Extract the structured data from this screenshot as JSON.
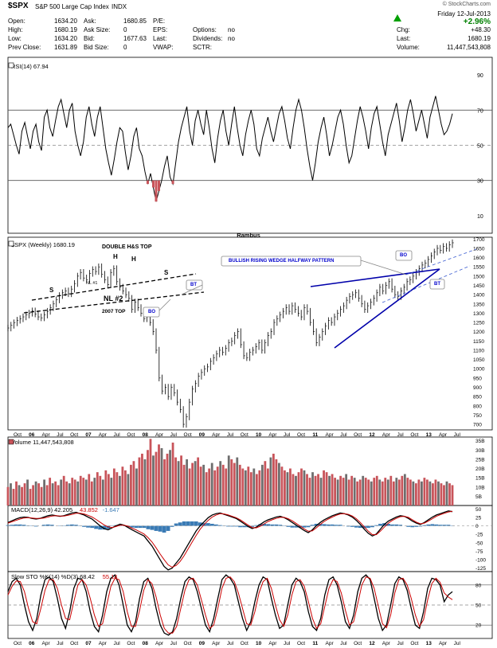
{
  "header": {
    "symbol": "$SPX",
    "name": "S&P 500 Large Cap Index",
    "exchange": "INDX",
    "credit": "© StockCharts.com",
    "date": "Friday 12-Jul-2013",
    "change_pct": "+2.96%",
    "rows": [
      {
        "l1": "Open:",
        "v1": "1634.20",
        "l2": "Ask:",
        "v2": "1680.85",
        "l3": "P/E:",
        "v3": "",
        "l4": "Chg:",
        "v4": "+48.30"
      },
      {
        "l1": "High:",
        "v1": "1680.19",
        "l2": "Ask Size:",
        "v2": "0",
        "l3": "EPS:",
        "v3": "",
        "l3b": "Options:",
        "v3b": "no",
        "l4": "Last:",
        "v4": "1680.19"
      },
      {
        "l1": "Low:",
        "v1": "1634.20",
        "l2": "Bid:",
        "v2": "1677.63",
        "l3": "Last:",
        "v3": "",
        "l3b": "Dividends:",
        "v3b": "no",
        "l4": "Volume:",
        "v4": "11,447,543,808"
      },
      {
        "l1": "Prev Close:",
        "v1": "1631.89",
        "l2": "Bid Size:",
        "v2": "0",
        "l3": "VWAP:",
        "v3": "",
        "l3b": "SCTR:",
        "v3b": "",
        "l4": "",
        "v4": ""
      }
    ],
    "colors": {
      "up": "#008000",
      "triangle": "#00a000"
    }
  },
  "chart_data": [
    {
      "type": "line",
      "panel": "rsi",
      "title": "RSI(14) 67.94",
      "y_ticks": [
        10,
        30,
        50,
        70,
        90
      ],
      "ylim": [
        0,
        100
      ],
      "reference_lines": [
        30,
        50,
        70
      ],
      "values": [
        60,
        62,
        56,
        50,
        45,
        58,
        63,
        55,
        48,
        58,
        62,
        52,
        47,
        66,
        70,
        60,
        55,
        64,
        72,
        76,
        68,
        60,
        70,
        74,
        58,
        50,
        44,
        52,
        66,
        72,
        62,
        55,
        66,
        72,
        60,
        48,
        40,
        33,
        42,
        52,
        60,
        58,
        46,
        36,
        44,
        55,
        60,
        48,
        44,
        35,
        28,
        34,
        26,
        18,
        24,
        30,
        38,
        44,
        32,
        28,
        40,
        52,
        60,
        66,
        72,
        58,
        50,
        64,
        70,
        62,
        56,
        70,
        60,
        48,
        40,
        54,
        64,
        70,
        58,
        50,
        62,
        72,
        60,
        50,
        44,
        56,
        64,
        70,
        62,
        48,
        44,
        54,
        60,
        66,
        58,
        52,
        60,
        68,
        72,
        64,
        54,
        48,
        60,
        70,
        76,
        70,
        60,
        48,
        38,
        30,
        40,
        52,
        60,
        66,
        56,
        44,
        50,
        58,
        66,
        70,
        62,
        50,
        40,
        44,
        54,
        64,
        72,
        66,
        58,
        48,
        60,
        68,
        72,
        62,
        52,
        44,
        56,
        62,
        68,
        74,
        64,
        52,
        60,
        70,
        76,
        68,
        58,
        64,
        70,
        62,
        54,
        66,
        72,
        78,
        70,
        62,
        56,
        58,
        62,
        68
      ]
    },
    {
      "type": "ohlc",
      "panel": "price",
      "title": "$SPX (Weekly) 1680.19",
      "caption_top": "Rambus",
      "y_ticks": [
        700,
        750,
        800,
        850,
        900,
        950,
        1000,
        1050,
        1100,
        1150,
        1200,
        1250,
        1300,
        1350,
        1400,
        1450,
        1500,
        1550,
        1600,
        1650,
        1700
      ],
      "ylim": [
        670,
        1710
      ],
      "x_tick_labels": [
        "Oct",
        "06",
        "Apr",
        "Jul",
        "Oct",
        "07",
        "Apr",
        "Jul",
        "Oct",
        "08",
        "Apr",
        "Jul",
        "Oct",
        "09",
        "Apr",
        "Jul",
        "Oct",
        "10",
        "Apr",
        "Jul",
        "Oct",
        "11",
        "Apr",
        "Jul",
        "Oct",
        "12",
        "Apr",
        "Jul",
        "Oct",
        "13",
        "Apr",
        "Jul"
      ],
      "close": [
        1220,
        1235,
        1248,
        1262,
        1270,
        1280,
        1290,
        1300,
        1312,
        1296,
        1280,
        1275,
        1290,
        1310,
        1330,
        1350,
        1372,
        1395,
        1410,
        1420,
        1405,
        1430,
        1460,
        1500,
        1520,
        1490,
        1480,
        1515,
        1535,
        1525,
        1550,
        1510,
        1480,
        1455,
        1520,
        1540,
        1470,
        1440,
        1420,
        1400,
        1380,
        1320,
        1360,
        1330,
        1300,
        1270,
        1280,
        1250,
        1200,
        1100,
        950,
        880,
        900,
        850,
        900,
        870,
        820,
        780,
        700,
        740,
        820,
        890,
        920,
        960,
        980,
        1000,
        1010,
        1040,
        1060,
        1080,
        1100,
        1090,
        1110,
        1140,
        1150,
        1180,
        1200,
        1130,
        1070,
        1060,
        1090,
        1100,
        1120,
        1140,
        1100,
        1140,
        1180,
        1200,
        1250,
        1270,
        1290,
        1310,
        1330,
        1310,
        1340,
        1320,
        1300,
        1280,
        1330,
        1310,
        1250,
        1200,
        1140,
        1170,
        1200,
        1230,
        1260,
        1250,
        1280,
        1300,
        1320,
        1340,
        1370,
        1390,
        1400,
        1410,
        1380,
        1350,
        1320,
        1340,
        1360,
        1380,
        1410,
        1440,
        1420,
        1450,
        1470,
        1430,
        1400,
        1390,
        1420,
        1440,
        1470,
        1480,
        1500,
        1520,
        1540,
        1560,
        1570,
        1590,
        1610,
        1630,
        1650,
        1640,
        1660,
        1650,
        1670,
        1680
      ],
      "annotations": [
        {
          "text": "DOUBLE H&S TOP",
          "color": "#000000"
        },
        {
          "text": "S",
          "color": "#000000"
        },
        {
          "text": "H",
          "color": "#000000"
        },
        {
          "text": "H",
          "color": "#000000"
        },
        {
          "text": "S",
          "color": "#000000"
        },
        {
          "text": "NL #1",
          "color": "#000000"
        },
        {
          "text": "NL #2",
          "color": "#000000"
        },
        {
          "text": "2007 TOP",
          "color": "#000000"
        },
        {
          "text": "BT",
          "color": "#0000cc"
        },
        {
          "text": "BO",
          "color": "#0000cc"
        },
        {
          "text": "BULLISH RISING WEDGE HALFWAY PATTERN",
          "color": "#0000cc"
        },
        {
          "text": "BO",
          "color": "#0000cc"
        },
        {
          "text": "BT",
          "color": "#0000cc"
        }
      ]
    },
    {
      "type": "bar",
      "panel": "volume",
      "title": "Volume 11,447,543,808",
      "y_ticks": [
        "5B",
        "10B",
        "15B",
        "20B",
        "25B",
        "30B",
        "35B"
      ],
      "ylim": [
        0,
        37
      ],
      "series_colors": {
        "up": "#6e6e6e",
        "down": "#c8545a"
      },
      "values": [
        10,
        12,
        9,
        13,
        11,
        10,
        12,
        14,
        9,
        11,
        13,
        12,
        10,
        14,
        11,
        15,
        12,
        13,
        11,
        14,
        16,
        13,
        12,
        15,
        14,
        13,
        16,
        15,
        14,
        17,
        13,
        15,
        18,
        16,
        14,
        19,
        17,
        15,
        20,
        18,
        16,
        21,
        19,
        17,
        22,
        24,
        20,
        26,
        28,
        25,
        30,
        36,
        27,
        29,
        33,
        31,
        25,
        28,
        30,
        34,
        26,
        24,
        27,
        22,
        25,
        20,
        23,
        24,
        26,
        21,
        22,
        18,
        20,
        23,
        19,
        21,
        24,
        22,
        20,
        27,
        25,
        23,
        26,
        22,
        20,
        19,
        21,
        18,
        20,
        17,
        19,
        22,
        24,
        20,
        26,
        28,
        25,
        23,
        21,
        19,
        18,
        20,
        17,
        16,
        18,
        20,
        19,
        17,
        15,
        18,
        16,
        17,
        15,
        19,
        18,
        16,
        17,
        15,
        14,
        16,
        15,
        17,
        14,
        16,
        15,
        13,
        14,
        16,
        15,
        14,
        13,
        15,
        16,
        14,
        13,
        15,
        14,
        16,
        13,
        15,
        14,
        16,
        17,
        15,
        14,
        13,
        12,
        14,
        13,
        15,
        14,
        13,
        12,
        14,
        13,
        12,
        11,
        13,
        12,
        11
      ]
    },
    {
      "type": "line",
      "panel": "macd",
      "title": "MACD(12,26,9) 42.205, 43.852, -1.647",
      "legend": [
        {
          "text": "MACD(12,26,9) 42.205",
          "color": "#000000"
        },
        {
          "text": "43.852",
          "color": "#cc0000"
        },
        {
          "text": "-1.647",
          "color": "#3a7bb5"
        }
      ],
      "y_ticks": [
        50,
        25,
        0,
        -25,
        -50,
        -75,
        -100,
        -125
      ],
      "ylim": [
        -135,
        60
      ],
      "series": [
        {
          "name": "MACD",
          "values": [
            10,
            15,
            20,
            24,
            26,
            25,
            22,
            20,
            22,
            26,
            30,
            32,
            30,
            28,
            30,
            34,
            38,
            40,
            36,
            32,
            26,
            20,
            10,
            0,
            -8,
            -12,
            -6,
            0,
            5,
            2,
            -5,
            -12,
            -18,
            -24,
            -30,
            -45,
            -60,
            -80,
            -100,
            -120,
            -130,
            -125,
            -110,
            -95,
            -75,
            -55,
            -35,
            -15,
            0,
            12,
            24,
            32,
            36,
            38,
            34,
            30,
            26,
            22,
            14,
            6,
            -2,
            -8,
            -4,
            4,
            12,
            18,
            22,
            26,
            28,
            24,
            18,
            10,
            2,
            -6,
            -14,
            -20,
            -12,
            0,
            10,
            18,
            24,
            30,
            34,
            38,
            36,
            32,
            26,
            16,
            4,
            -10,
            -22,
            -30,
            -24,
            -10,
            4,
            14,
            20,
            26,
            30,
            28,
            22,
            14,
            8,
            4,
            10,
            18,
            26,
            32,
            36,
            40,
            44,
            42
          ]
        },
        {
          "name": "Signal",
          "values": [
            8,
            12,
            16,
            20,
            23,
            24,
            23,
            22,
            22,
            23,
            26,
            29,
            30,
            29,
            29,
            31,
            34,
            37,
            37,
            35,
            31,
            26,
            19,
            11,
            3,
            -3,
            -5,
            -2,
            2,
            2,
            -1,
            -7,
            -12,
            -18,
            -24,
            -35,
            -48,
            -65,
            -83,
            -100,
            -115,
            -122,
            -117,
            -105,
            -88,
            -68,
            -48,
            -28,
            -10,
            4,
            16,
            26,
            32,
            36,
            35,
            32,
            28,
            24,
            18,
            10,
            2,
            -5,
            -6,
            -1,
            6,
            13,
            18,
            22,
            25,
            25,
            21,
            15,
            7,
            -1,
            -9,
            -16,
            -15,
            -6,
            4,
            13,
            20,
            26,
            31,
            35,
            36,
            34,
            29,
            21,
            10,
            -3,
            -16,
            -26,
            -26,
            -16,
            -4,
            8,
            16,
            22,
            27,
            28,
            25,
            18,
            11,
            6,
            8,
            14,
            21,
            28,
            33,
            37,
            41,
            43
          ]
        }
      ],
      "histogram": [
        2,
        3,
        4,
        4,
        3,
        1,
        -1,
        -2,
        0,
        3,
        4,
        3,
        0,
        -1,
        1,
        3,
        4,
        3,
        -1,
        -3,
        -5,
        -6,
        -9,
        -11,
        -11,
        -9,
        -1,
        2,
        3,
        0,
        -4,
        -5,
        -6,
        -6,
        -6,
        -10,
        -12,
        -15,
        -17,
        -20,
        -15,
        -3,
        7,
        10,
        13,
        13,
        13,
        13,
        10,
        8,
        8,
        6,
        4,
        2,
        -1,
        -2,
        -2,
        -2,
        -4,
        -4,
        -4,
        -3,
        2,
        5,
        6,
        5,
        4,
        4,
        3,
        -1,
        -3,
        -5,
        -5,
        -5,
        -5,
        -4,
        3,
        6,
        6,
        5,
        4,
        4,
        3,
        3,
        0,
        -2,
        -3,
        -5,
        -6,
        -7,
        -6,
        -4,
        2,
        6,
        8,
        6,
        4,
        4,
        3,
        0,
        -3,
        -4,
        -3,
        -2,
        2,
        4,
        5,
        4,
        3,
        3,
        3,
        -1
      ]
    },
    {
      "type": "line",
      "panel": "stochastic",
      "title": "Slow STO %K(14) %D(3) 68.42, 55.14",
      "legend": [
        {
          "text": "Slow STO %K(14) %D(3) 68.42",
          "color": "#000000"
        },
        {
          "text": "55.14",
          "color": "#cc0000"
        }
      ],
      "y_ticks": [
        20,
        50,
        80
      ],
      "ylim": [
        0,
        100
      ],
      "reference_lines": [
        20,
        50,
        80
      ],
      "series": [
        {
          "name": "%K",
          "values": [
            70,
            85,
            90,
            80,
            50,
            25,
            12,
            30,
            65,
            88,
            92,
            85,
            60,
            30,
            15,
            40,
            75,
            90,
            88,
            70,
            40,
            18,
            10,
            35,
            70,
            90,
            95,
            80,
            50,
            20,
            10,
            25,
            60,
            85,
            90,
            75,
            45,
            20,
            8,
            5,
            10,
            30,
            60,
            85,
            92,
            88,
            70,
            45,
            20,
            10,
            30,
            60,
            88,
            95,
            90,
            80,
            55,
            30,
            12,
            25,
            55,
            80,
            92,
            88,
            60,
            35,
            15,
            20,
            50,
            80,
            90,
            85,
            70,
            40,
            18,
            12,
            30,
            65,
            88,
            92,
            80,
            55,
            25,
            15,
            35,
            70,
            90,
            95,
            88,
            60,
            30,
            12,
            20,
            50,
            82,
            92,
            88,
            72,
            45,
            20,
            15,
            40,
            75,
            90,
            88,
            80,
            55,
            65,
            70
          ]
        },
        {
          "name": "%D",
          "values": [
            65,
            78,
            86,
            85,
            70,
            45,
            25,
            22,
            45,
            72,
            88,
            88,
            75,
            50,
            30,
            28,
            55,
            80,
            88,
            80,
            60,
            35,
            18,
            22,
            50,
            78,
            90,
            88,
            70,
            40,
            18,
            18,
            42,
            72,
            88,
            82,
            62,
            35,
            15,
            8,
            8,
            18,
            45,
            72,
            88,
            90,
            80,
            58,
            35,
            15,
            20,
            45,
            75,
            90,
            92,
            85,
            68,
            45,
            22,
            20,
            40,
            68,
            85,
            90,
            75,
            50,
            28,
            18,
            35,
            65,
            85,
            88,
            78,
            55,
            30,
            15,
            22,
            48,
            75,
            88,
            85,
            68,
            42,
            20,
            25,
            52,
            80,
            92,
            90,
            75,
            48,
            22,
            16,
            35,
            68,
            88,
            90,
            80,
            60,
            35,
            18,
            28,
            58,
            82,
            90,
            84,
            68,
            62,
            58
          ]
        }
      ]
    }
  ]
}
